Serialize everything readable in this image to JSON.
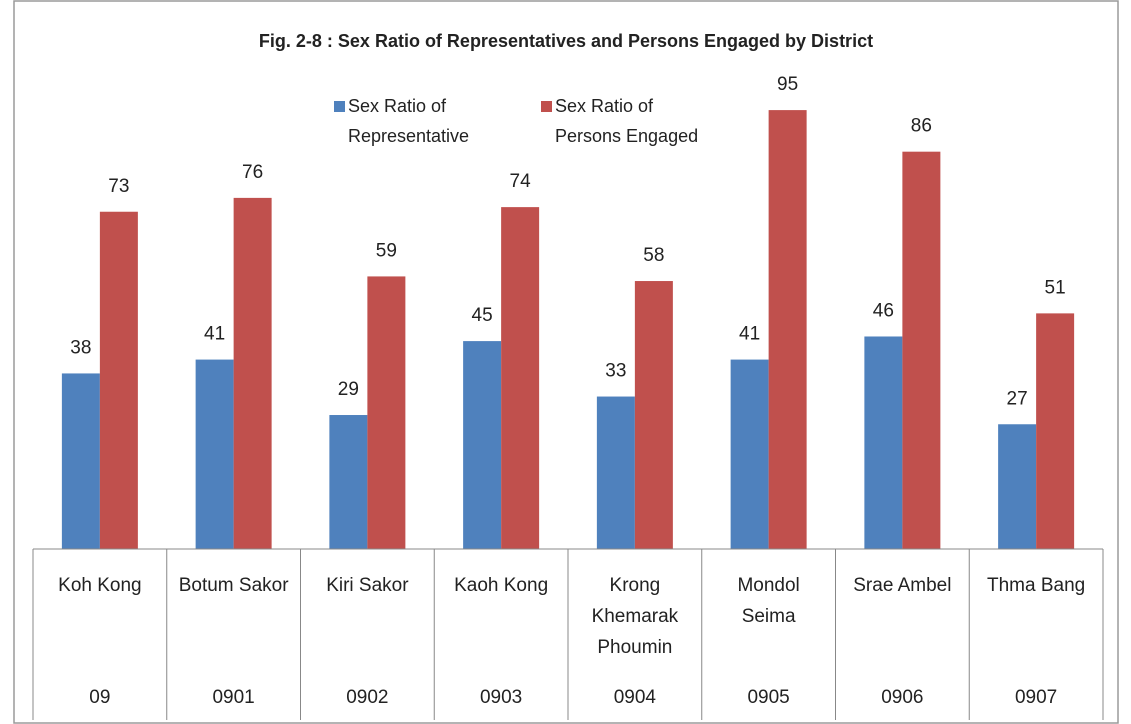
{
  "chart_data": {
    "type": "bar",
    "title": "Fig. 2-8 : Sex Ratio of Representatives and Persons Engaged by District",
    "categories": [
      "Koh Kong",
      "Botum Sakor",
      "Kiri Sakor",
      "Kaoh Kong",
      "Krong Khemarak Phoumin",
      "Mondol Seima",
      "Srae Ambel",
      "Thma Bang"
    ],
    "codes": [
      "09",
      "0901",
      "0902",
      "0903",
      "0904",
      "0905",
      "0906",
      "0907"
    ],
    "series": [
      {
        "name": "Sex Ratio of Representative",
        "color": "#4f81bd",
        "values": [
          38,
          41,
          29,
          45,
          33,
          41,
          46,
          27
        ]
      },
      {
        "name": "Sex Ratio of Persons Engaged",
        "color": "#c0504d",
        "values": [
          73,
          76,
          59,
          74,
          58,
          95,
          86,
          51
        ]
      }
    ]
  }
}
